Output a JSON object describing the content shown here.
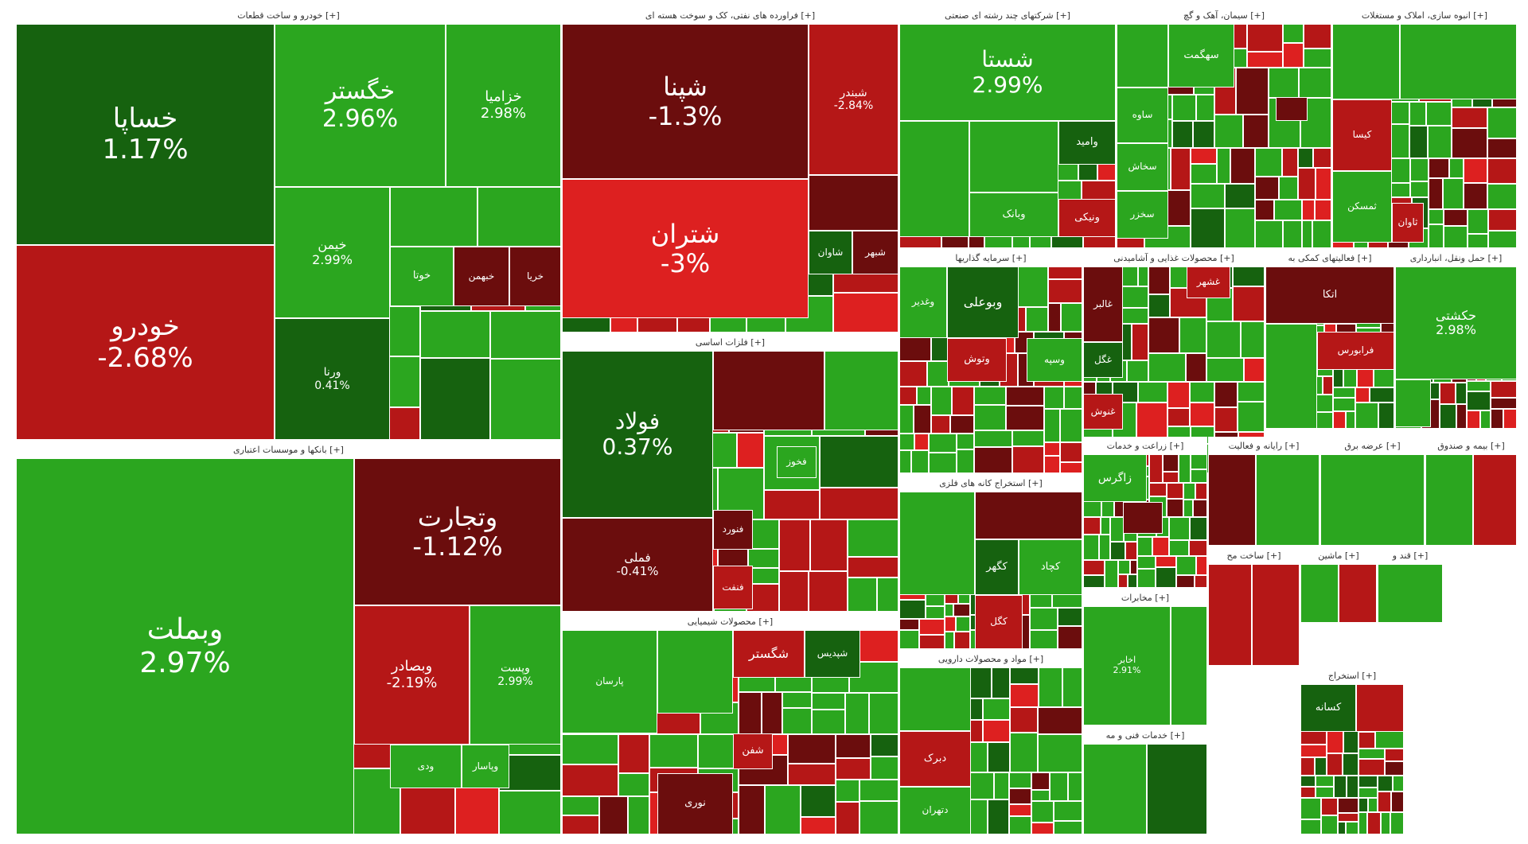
{
  "colors": {
    "strong_green": "#16620f",
    "green": "#2ba61f",
    "light_green": "#34b229",
    "dark_red": "#6b0d0d",
    "red": "#b51717",
    "bright_red": "#dd2020"
  },
  "chart_data": {
    "type": "treemap",
    "sectors": [
      {
        "name": "خودرو و ساخت قطعات [+]",
        "tiles": [
          {
            "symbol": "خساپا",
            "change": "1.17%",
            "c": "strong_green"
          },
          {
            "symbol": "خودرو",
            "change": "-2.68%",
            "c": "red"
          },
          {
            "symbol": "خگستر",
            "change": "2.96%",
            "c": "green"
          },
          {
            "symbol": "خزامیا",
            "change": "2.98%",
            "c": "green"
          },
          {
            "symbol": "خیمن",
            "change": "2.99%",
            "c": "green"
          },
          {
            "symbol": "",
            "change": "",
            "c": "green"
          },
          {
            "symbol": "",
            "change": "",
            "c": "green"
          },
          {
            "symbol": "ورنا",
            "change": "0.41%",
            "c": "strong_green"
          },
          {
            "symbol": "خوتا",
            "change": "",
            "c": "green"
          },
          {
            "symbol": "خبهمن",
            "change": "",
            "c": "dark_red"
          },
          {
            "symbol": "خریا",
            "change": "",
            "c": "dark_red"
          }
        ]
      },
      {
        "name": "فراورده های نفتی، کک و سوخت هسته ای [+]",
        "tiles": [
          {
            "symbol": "شپنا",
            "change": "-1.3%",
            "c": "dark_red"
          },
          {
            "symbol": "شتران",
            "change": "-3%",
            "c": "bright_red"
          },
          {
            "symbol": "شبندر",
            "change": "-2.84%",
            "c": "red"
          },
          {
            "symbol": "",
            "change": "",
            "c": "dark_red"
          },
          {
            "symbol": "شاوان",
            "change": "",
            "c": "strong_green"
          },
          {
            "symbol": "شبهر",
            "change": "",
            "c": "dark_red"
          }
        ]
      },
      {
        "name": "شرکتهای چند رشته ای صنعتی [+]",
        "tiles": [
          {
            "symbol": "شستا",
            "change": "2.99%",
            "c": "green"
          },
          {
            "symbol": "",
            "change": "",
            "c": "green"
          },
          {
            "symbol": "",
            "change": "",
            "c": "green"
          },
          {
            "symbol": "وامید",
            "change": "",
            "c": "strong_green"
          },
          {
            "symbol": "ونیکی",
            "change": "",
            "c": "red"
          },
          {
            "symbol": "وبانک",
            "change": "",
            "c": "green"
          }
        ]
      },
      {
        "name": "سیمان، آهک و گچ [+]",
        "tiles": [
          {
            "symbol": "",
            "change": "",
            "c": "green"
          },
          {
            "symbol": "سهگمت",
            "change": "",
            "c": "green"
          },
          {
            "symbol": "ساوه",
            "change": "",
            "c": "green"
          },
          {
            "symbol": "سخاش",
            "change": "",
            "c": "green"
          },
          {
            "symbol": "سخزر",
            "change": "",
            "c": "green"
          },
          {
            "symbol": "",
            "change": "",
            "c": "dark_red"
          }
        ]
      },
      {
        "name": "انبوه سازی، املاک و مستغلات [+]",
        "tiles": [
          {
            "symbol": "",
            "change": "",
            "c": "green"
          },
          {
            "symbol": "",
            "change": "",
            "c": "green"
          },
          {
            "symbol": "کیسا",
            "change": "",
            "c": "red"
          },
          {
            "symbol": "ثمسکن",
            "change": "",
            "c": "green"
          },
          {
            "symbol": "ثاوان",
            "change": "",
            "c": "red"
          }
        ]
      },
      {
        "name": "بانکها و موسسات اعتباری [+]",
        "tiles": [
          {
            "symbol": "وبملت",
            "change": "2.97%",
            "c": "green"
          },
          {
            "symbol": "وتجارت",
            "change": "-1.12%",
            "c": "dark_red"
          },
          {
            "symbol": "وبصادر",
            "change": "-2.19%",
            "c": "red"
          },
          {
            "symbol": "وپست",
            "change": "2.99%",
            "c": "green"
          },
          {
            "symbol": "وپاسار",
            "change": "",
            "c": "green"
          },
          {
            "symbol": "ودی",
            "change": "",
            "c": "green"
          }
        ]
      },
      {
        "name": "فلزات اساسی [+]",
        "tiles": [
          {
            "symbol": "فولاد",
            "change": "0.37%",
            "c": "strong_green"
          },
          {
            "symbol": "فملی",
            "change": "-0.41%",
            "c": "dark_red"
          },
          {
            "symbol": "",
            "change": "",
            "c": "dark_red"
          },
          {
            "symbol": "",
            "change": "",
            "c": "green"
          },
          {
            "symbol": "فخوز",
            "change": "",
            "c": "green"
          },
          {
            "symbol": "فنورد",
            "change": "",
            "c": "dark_red"
          },
          {
            "symbol": "فنفت",
            "change": "",
            "c": "red"
          }
        ]
      },
      {
        "name": "محصولات شیمیایی [+]",
        "tiles": [
          {
            "symbol": "پارسان",
            "change": "",
            "c": "green"
          },
          {
            "symbol": "",
            "change": "",
            "c": "green"
          },
          {
            "symbol": "شگستر",
            "change": "",
            "c": "red"
          },
          {
            "symbol": "شپدیس",
            "change": "",
            "c": "strong_green"
          },
          {
            "symbol": "شفن",
            "change": "",
            "c": "red"
          },
          {
            "symbol": "نوری",
            "change": "",
            "c": "dark_red"
          }
        ]
      },
      {
        "name": "سرمایه گذاریها [+]",
        "tiles": [
          {
            "symbol": "وغدیر",
            "change": "",
            "c": "green"
          },
          {
            "symbol": "وبوعلی",
            "change": "",
            "c": "strong_green"
          },
          {
            "symbol": "وتوش",
            "change": "",
            "c": "red"
          },
          {
            "symbol": "وسپه",
            "change": "",
            "c": "green"
          }
        ]
      },
      {
        "name": "محصولات غذایی و آشامیدنی [+]",
        "tiles": [
          {
            "symbol": "غالبر",
            "change": "",
            "c": "dark_red"
          },
          {
            "symbol": "غشهر",
            "change": "",
            "c": "red"
          },
          {
            "symbol": "غگل",
            "change": "",
            "c": "strong_green"
          },
          {
            "symbol": "غنوش",
            "change": "",
            "c": "red"
          }
        ]
      },
      {
        "name": "فعالیتهای کمکی به [+]",
        "tiles": [
          {
            "symbol": "اتکا",
            "change": "",
            "c": "dark_red"
          },
          {
            "symbol": "فرابورس",
            "change": "",
            "c": "red"
          },
          {
            "symbol": "",
            "change": "",
            "c": "green"
          }
        ]
      },
      {
        "name": "حمل ونقل، انبارداری [+]",
        "tiles": [
          {
            "symbol": "حکشتی",
            "change": "2.98%",
            "c": "green"
          },
          {
            "symbol": "",
            "change": "",
            "c": "green"
          }
        ]
      },
      {
        "name": "استخراج کانه های فلزی [+]",
        "tiles": [
          {
            "symbol": "",
            "change": "",
            "c": "green"
          },
          {
            "symbol": "",
            "change": "",
            "c": "dark_red"
          },
          {
            "symbol": "کگهر",
            "change": "",
            "c": "strong_green"
          },
          {
            "symbol": "کچاد",
            "change": "",
            "c": "green"
          },
          {
            "symbol": "کگل",
            "change": "",
            "c": "red"
          }
        ]
      },
      {
        "name": "مواد و محصولات دارویی [+]",
        "tiles": [
          {
            "symbol": "",
            "change": "",
            "c": "green"
          },
          {
            "symbol": "دبرک",
            "change": "",
            "c": "red"
          },
          {
            "symbol": "دتهران",
            "change": "",
            "c": "green"
          }
        ]
      },
      {
        "name": "زراعت و خدمات [+]",
        "tiles": [
          {
            "symbol": "زاگرس",
            "change": "",
            "c": "green"
          },
          {
            "symbol": "",
            "change": "",
            "c": "dark_red"
          }
        ]
      },
      {
        "name": "مخابرات [+]",
        "tiles": [
          {
            "symbol": "اخابر",
            "change": "2.91%",
            "c": "green"
          },
          {
            "symbol": "",
            "change": "",
            "c": "green"
          }
        ]
      },
      {
        "name": "رایانه و فعالیت [+]",
        "tiles": [
          {
            "symbol": "",
            "change": "",
            "c": "dark_red"
          },
          {
            "symbol": "",
            "change": "",
            "c": "green"
          }
        ]
      },
      {
        "name": "عرضه برق [+]",
        "tiles": [
          {
            "symbol": "",
            "change": "",
            "c": "green"
          },
          {
            "symbol": "",
            "change": "",
            "c": "green"
          }
        ]
      },
      {
        "name": "بیمه و صندوق [+]",
        "tiles": [
          {
            "symbol": "",
            "change": "",
            "c": "green"
          },
          {
            "symbol": "",
            "change": "",
            "c": "red"
          }
        ]
      },
      {
        "name": "ساخت مح [+]",
        "tiles": [
          {
            "symbol": "",
            "change": "",
            "c": "red"
          },
          {
            "symbol": "",
            "change": "",
            "c": "red"
          }
        ]
      },
      {
        "name": "ماشین [+]",
        "tiles": [
          {
            "symbol": "",
            "change": "",
            "c": "green"
          },
          {
            "symbol": "",
            "change": "",
            "c": "red"
          }
        ]
      },
      {
        "name": "قند و [+]",
        "tiles": [
          {
            "symbol": "",
            "change": "",
            "c": "green"
          }
        ]
      },
      {
        "name": "خدمات فنی و مه [+]",
        "tiles": [
          {
            "symbol": "",
            "change": "",
            "c": "green"
          },
          {
            "symbol": "",
            "change": "",
            "c": "strong_green"
          }
        ]
      },
      {
        "name": "استخراج [+]",
        "tiles": [
          {
            "symbol": "کسانه",
            "change": "",
            "c": "strong_green"
          },
          {
            "symbol": "",
            "change": "",
            "c": "red"
          }
        ]
      }
    ]
  }
}
